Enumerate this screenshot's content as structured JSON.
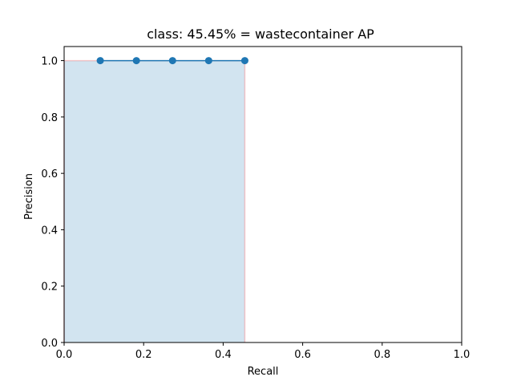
{
  "chart_data": {
    "type": "line",
    "title": "class: 45.45% = wastecontainer AP",
    "xlabel": "Recall",
    "ylabel": "Precision",
    "xlim": [
      0,
      1
    ],
    "ylim": [
      0,
      1.05
    ],
    "xticks": [
      0,
      0.2,
      0.4,
      0.6,
      0.8,
      1.0
    ],
    "xtick_labels": [
      "0.0",
      "0.2",
      "0.4",
      "0.6",
      "0.8",
      "1.0"
    ],
    "yticks": [
      0,
      0.2,
      0.4,
      0.6,
      0.8,
      1.0
    ],
    "ytick_labels": [
      "0.0",
      "0.2",
      "0.4",
      "0.6",
      "0.8",
      "1.0"
    ],
    "grid": false,
    "series": [
      {
        "x": [
          0.0909,
          0.1818,
          0.2727,
          0.3636,
          0.4545
        ],
        "y": [
          1.0,
          1.0,
          1.0,
          1.0,
          1.0
        ],
        "color": "#1f77b4",
        "marker": "circle"
      }
    ],
    "area": {
      "x": [
        0.0,
        0.0,
        0.4545,
        0.4545
      ],
      "y": [
        0.0,
        1.0,
        1.0,
        0.0
      ],
      "fill_color": "#1f77b4",
      "fill_opacity": 0.2,
      "edge_color": "#ff0000",
      "edge_opacity": 0.2
    }
  }
}
